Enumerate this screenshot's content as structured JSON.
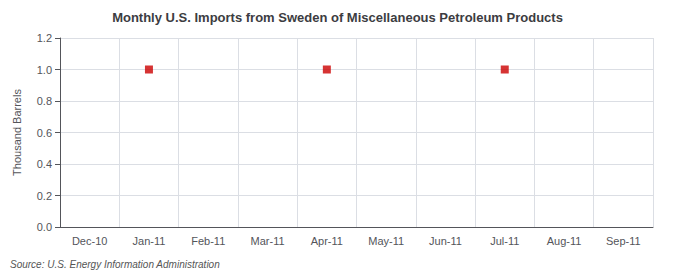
{
  "chart_data": {
    "type": "scatter",
    "title": "Monthly U.S. Imports from Sweden of Miscellaneous Petroleum Products",
    "ylabel": "Thousand Barrels",
    "source": "Source: U.S. Energy Information Administration",
    "categories": [
      "Dec-10",
      "Jan-11",
      "Feb-11",
      "Mar-11",
      "Apr-11",
      "May-11",
      "Jun-11",
      "Jul-11",
      "Aug-11",
      "Sep-11"
    ],
    "values": [
      null,
      1.0,
      null,
      null,
      1.0,
      null,
      null,
      1.0,
      null,
      null
    ],
    "color": "#cc0000",
    "marker": "square",
    "ylim": [
      0.0,
      1.2
    ],
    "yticks": [
      {
        "value": 0.0,
        "label": "0.0"
      },
      0.2,
      0.4,
      0.6,
      0.8,
      {
        "value": 1.0,
        "label": "1.0"
      },
      1.2
    ],
    "grid": true
  }
}
